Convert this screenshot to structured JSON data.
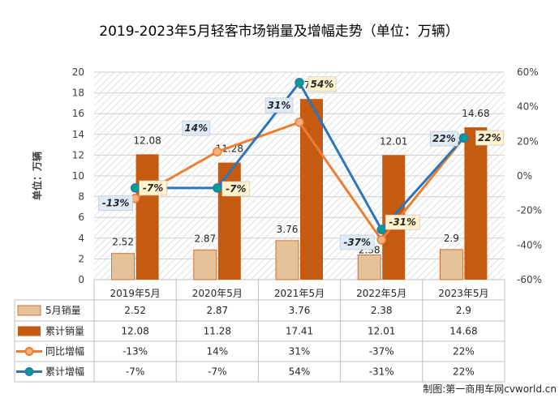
{
  "chart_data": {
    "type": "bar",
    "title": "2019-2023年5月轻客市场销量及增幅走势（单位：万辆）",
    "ylabel": "单位：万辆",
    "credit": "制图:第一商用车网cvworld.cn",
    "categories": [
      "2019年5月",
      "2020年5月",
      "2021年5月",
      "2022年5月",
      "2023年5月"
    ],
    "ylim": [
      0,
      20
    ],
    "y_ticks": [
      "0",
      "2",
      "4",
      "6",
      "8",
      "10",
      "12",
      "14",
      "16",
      "18",
      "20"
    ],
    "y2lim": [
      -60,
      60
    ],
    "y2_ticks": [
      "-60%",
      "-40%",
      "-20%",
      "0%",
      "20%",
      "40%",
      "60%"
    ],
    "series": [
      {
        "name": "5月销量",
        "type": "bar",
        "axis": "left",
        "color": "#E6C29B",
        "values": [
          2.52,
          2.87,
          3.76,
          2.38,
          2.9
        ],
        "labels": [
          "2.52",
          "2.87",
          "3.76",
          "2.38",
          "2.9"
        ]
      },
      {
        "name": "累计销量",
        "type": "bar",
        "axis": "left",
        "color": "#C55A11",
        "values": [
          12.08,
          11.28,
          17.41,
          12.01,
          14.68
        ],
        "labels": [
          "12.08",
          "11.28",
          "17.41",
          "12.01",
          "14.68"
        ]
      },
      {
        "name": "同比增幅",
        "type": "line",
        "axis": "right",
        "color": "#ED7D31",
        "values": [
          -13,
          14,
          31,
          -37,
          22
        ],
        "labels": [
          "-13%",
          "14%",
          "31%",
          "-37%",
          "22%"
        ]
      },
      {
        "name": "累计增幅",
        "type": "line",
        "axis": "right",
        "color": "#2E75B6",
        "values": [
          -7,
          -7,
          54,
          -31,
          22
        ],
        "labels": [
          "-7%",
          "-7%",
          "54%",
          "-31%",
          "22%"
        ]
      }
    ]
  }
}
